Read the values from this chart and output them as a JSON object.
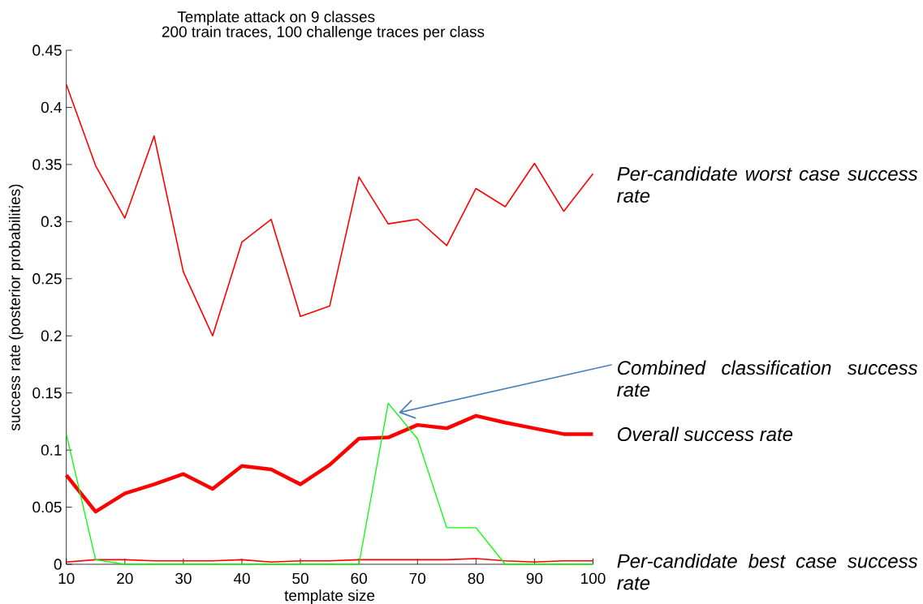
{
  "chart_data": {
    "type": "line",
    "title": "Template attack on 9 classes",
    "subtitle": "200 train traces, 100 challenge traces per class",
    "xlabel": "template size",
    "ylabel": "success rate (posterior probabilities)",
    "x": [
      10,
      15,
      20,
      25,
      30,
      35,
      40,
      45,
      50,
      55,
      60,
      65,
      70,
      75,
      80,
      85,
      90,
      95,
      100
    ],
    "series": [
      {
        "name": "Per-candidate worst case success rate",
        "color": "#ff0000",
        "values": [
          0.42,
          0.349,
          0.303,
          0.375,
          0.256,
          0.2,
          0.282,
          0.302,
          0.217,
          0.226,
          0.339,
          0.298,
          0.302,
          0.279,
          0.329,
          0.313,
          0.351,
          0.309,
          0.342
        ]
      },
      {
        "name": "Overall success rate",
        "color": "#ff0000",
        "values": [
          0.078,
          0.046,
          0.062,
          0.07,
          0.079,
          0.066,
          0.086,
          0.083,
          0.07,
          0.087,
          0.11,
          0.111,
          0.122,
          0.119,
          0.13,
          0.124,
          0.119,
          0.114,
          0.114
        ]
      },
      {
        "name": "Per-candidate best case success rate",
        "color": "#ff0000",
        "values": [
          0.002,
          0.004,
          0.004,
          0.003,
          0.003,
          0.003,
          0.004,
          0.002,
          0.003,
          0.003,
          0.004,
          0.004,
          0.004,
          0.004,
          0.005,
          0.003,
          0.002,
          0.003,
          0.003
        ]
      },
      {
        "color": "#00ff00",
        "values": [
          0.114,
          0.004,
          0,
          0,
          0,
          0,
          0,
          0,
          0,
          0,
          0,
          0.141,
          0.11,
          0.032,
          0.032,
          0,
          0,
          0,
          0
        ]
      }
    ],
    "annotations": [
      {
        "text": "Combined classification success rate",
        "x": 67,
        "y": 0.133
      }
    ],
    "xlim": [
      10,
      100
    ],
    "xticks": [
      10,
      20,
      30,
      40,
      50,
      60,
      70,
      80,
      90,
      100
    ],
    "ylim": [
      0,
      0.45
    ],
    "yticks": [
      0,
      0.05,
      0.1,
      0.15,
      0.2,
      0.25,
      0.3,
      0.35,
      0.4,
      0.45
    ],
    "marker": "none",
    "line_style": "solid"
  }
}
